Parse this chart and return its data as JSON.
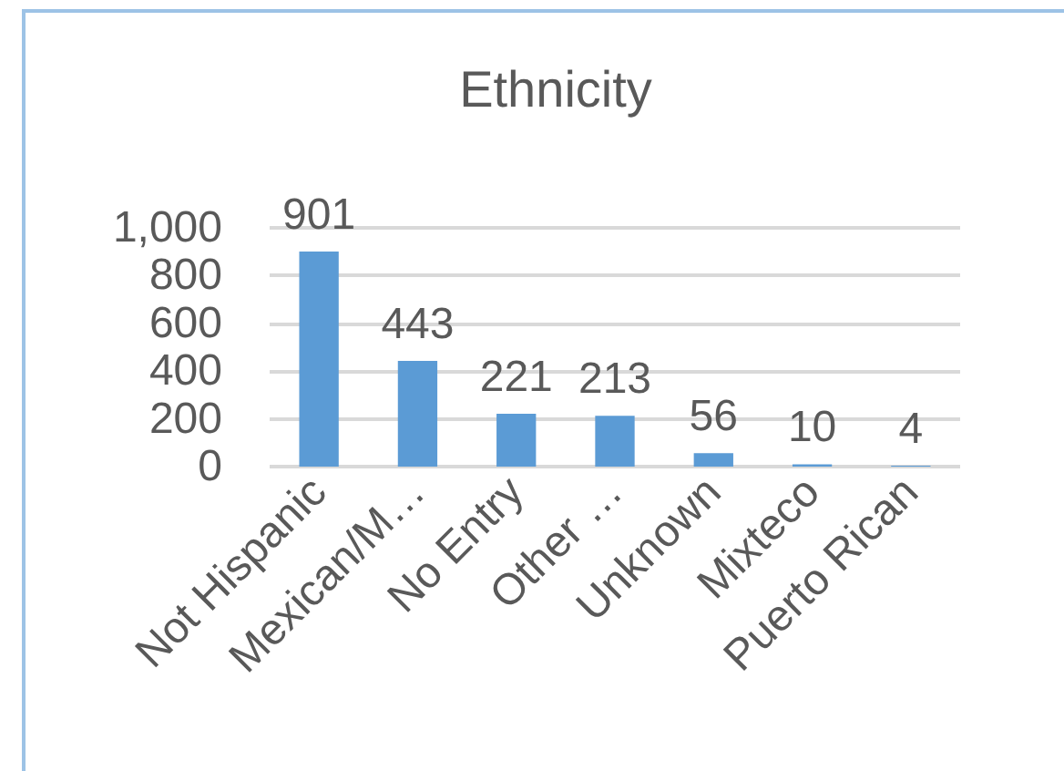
{
  "chart_data": {
    "type": "bar",
    "title": "Ethnicity",
    "categories": [
      "Not Hispanic",
      "Mexican/M…",
      "No Entry",
      "Other …",
      "Unknown",
      "Mixteco",
      "Puerto Rican"
    ],
    "values": [
      901,
      443,
      221,
      213,
      56,
      10,
      4
    ],
    "color": "#5b9bd5",
    "ylim": [
      0,
      1000
    ],
    "yticks": [
      0,
      200,
      400,
      600,
      800,
      {
        "value": 1000,
        "label": "1,000"
      }
    ],
    "grid": "y",
    "data_labels": true
  }
}
